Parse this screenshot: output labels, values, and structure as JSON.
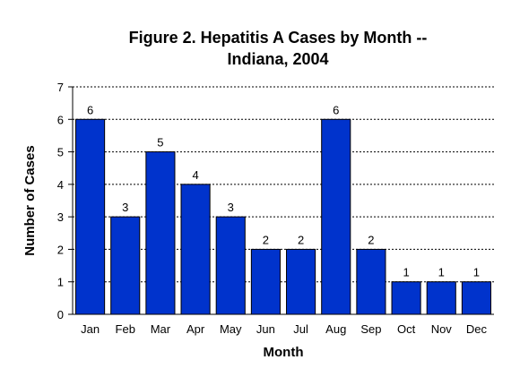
{
  "chart_data": {
    "type": "bar",
    "title": "Figure 2. Hepatitis A Cases by Month --",
    "subtitle": "Indiana, 2004",
    "xlabel": "Month",
    "ylabel": "Number of Cases",
    "categories": [
      "Jan",
      "Feb",
      "Mar",
      "Apr",
      "May",
      "Jun",
      "Jul",
      "Aug",
      "Sep",
      "Oct",
      "Nov",
      "Dec"
    ],
    "values": [
      6,
      3,
      5,
      4,
      3,
      2,
      2,
      6,
      2,
      1,
      1,
      1
    ],
    "data_labels": [
      "6",
      "3",
      "5",
      "4",
      "3",
      "2",
      "2",
      "6",
      "2",
      "1",
      "1",
      "1"
    ],
    "ylim": [
      0,
      7
    ],
    "y_ticks": [
      "0",
      "1",
      "2",
      "3",
      "4",
      "5",
      "6",
      "7"
    ],
    "grid": "dashed horizontal",
    "legend": "none",
    "colors": {
      "bar": "#0033CC",
      "bar_stroke": "#000000",
      "grid": "#000000",
      "text": "#000000"
    }
  }
}
